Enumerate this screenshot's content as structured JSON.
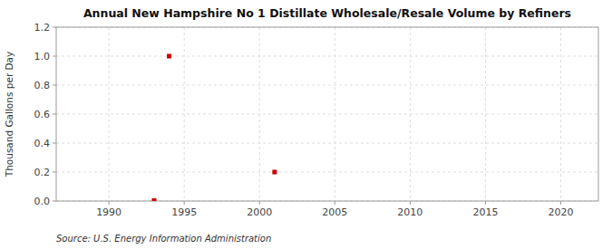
{
  "chart_data": {
    "type": "scatter",
    "title": "Annual New Hampshire No 1 Distillate Wholesale/Resale Volume by Refiners",
    "y_label": "Thousand Gallons per Day",
    "source": "Source: U.S. Energy Information Administration",
    "x": [
      1993,
      1994,
      2001
    ],
    "values": [
      0.003,
      1.0,
      0.2
    ],
    "color": "#cc0000",
    "marker": "square",
    "xlim": [
      1986.5,
      2022.5
    ],
    "ylim": [
      0.0,
      1.2
    ],
    "xticks": [
      1990,
      1995,
      2000,
      2005,
      2010,
      2015,
      2020
    ],
    "yticks": [
      {
        "value": 0.0,
        "label": "0.0"
      },
      0.2,
      0.4,
      0.6,
      0.8,
      {
        "value": 1.0,
        "label": "1.0"
      },
      1.2
    ],
    "grid": true
  }
}
